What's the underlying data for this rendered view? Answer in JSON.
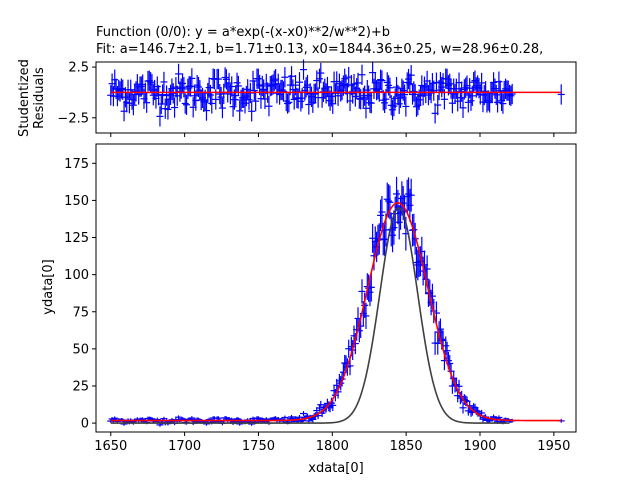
{
  "title": {
    "line1": "Function (0/0): y = a*exp(-(x-x0)**2/w**2)+b",
    "line2": "Fit: a=146.7±2.1, b=1.71±0.13, x0=1844.36±0.25, w=28.96±0.28,"
  },
  "colors": {
    "data": "#0000ff",
    "fit": "#ff0000",
    "model": "#404040",
    "axes": "#000000"
  },
  "chart_data": [
    {
      "type": "scatter",
      "panel": "residuals",
      "ylabel_lines": [
        "Studentized",
        "Residuals"
      ],
      "xlim": [
        1640,
        1965
      ],
      "ylim": [
        -4.0,
        3.0
      ],
      "yticks": [
        -2.5,
        2.5
      ],
      "ytick_labels": [
        "−2.5",
        "2.5"
      ],
      "xtick_labels_shown": false,
      "grid": false,
      "zero_line": {
        "y": 0,
        "x_range": [
          1650,
          1955
        ]
      },
      "error_bar": 1,
      "points_x_range": [
        1650,
        1955
      ]
    },
    {
      "type": "scatter",
      "panel": "data",
      "xlabel": "xdata[0]",
      "ylabel": "ydata[0]",
      "xlim": [
        1640,
        1965
      ],
      "ylim": [
        -6,
        188
      ],
      "xticks": [
        1650,
        1700,
        1750,
        1800,
        1850,
        1900,
        1950
      ],
      "xtick_labels": [
        "1650",
        "1700",
        "1750",
        "1800",
        "1850",
        "1900",
        "1950"
      ],
      "yticks": [
        0,
        25,
        50,
        75,
        100,
        125,
        150,
        175
      ],
      "ytick_labels": [
        "0",
        "25",
        "50",
        "75",
        "100",
        "125",
        "150",
        "175"
      ],
      "grid": false,
      "series": [
        {
          "kind": "data",
          "marker": "+",
          "x_range": [
            1650,
            1955
          ]
        },
        {
          "kind": "fit",
          "function": "gaussian",
          "params": {
            "a": 146.7,
            "b": 1.71,
            "x0": 1844.36,
            "w": 28.96
          },
          "x_range": [
            1650,
            1955
          ]
        },
        {
          "kind": "model",
          "function": "gaussian",
          "params": {
            "a": 145,
            "b": 0,
            "x0": 1845,
            "w": 18
          },
          "x_range": [
            1650,
            1920
          ]
        }
      ]
    }
  ]
}
